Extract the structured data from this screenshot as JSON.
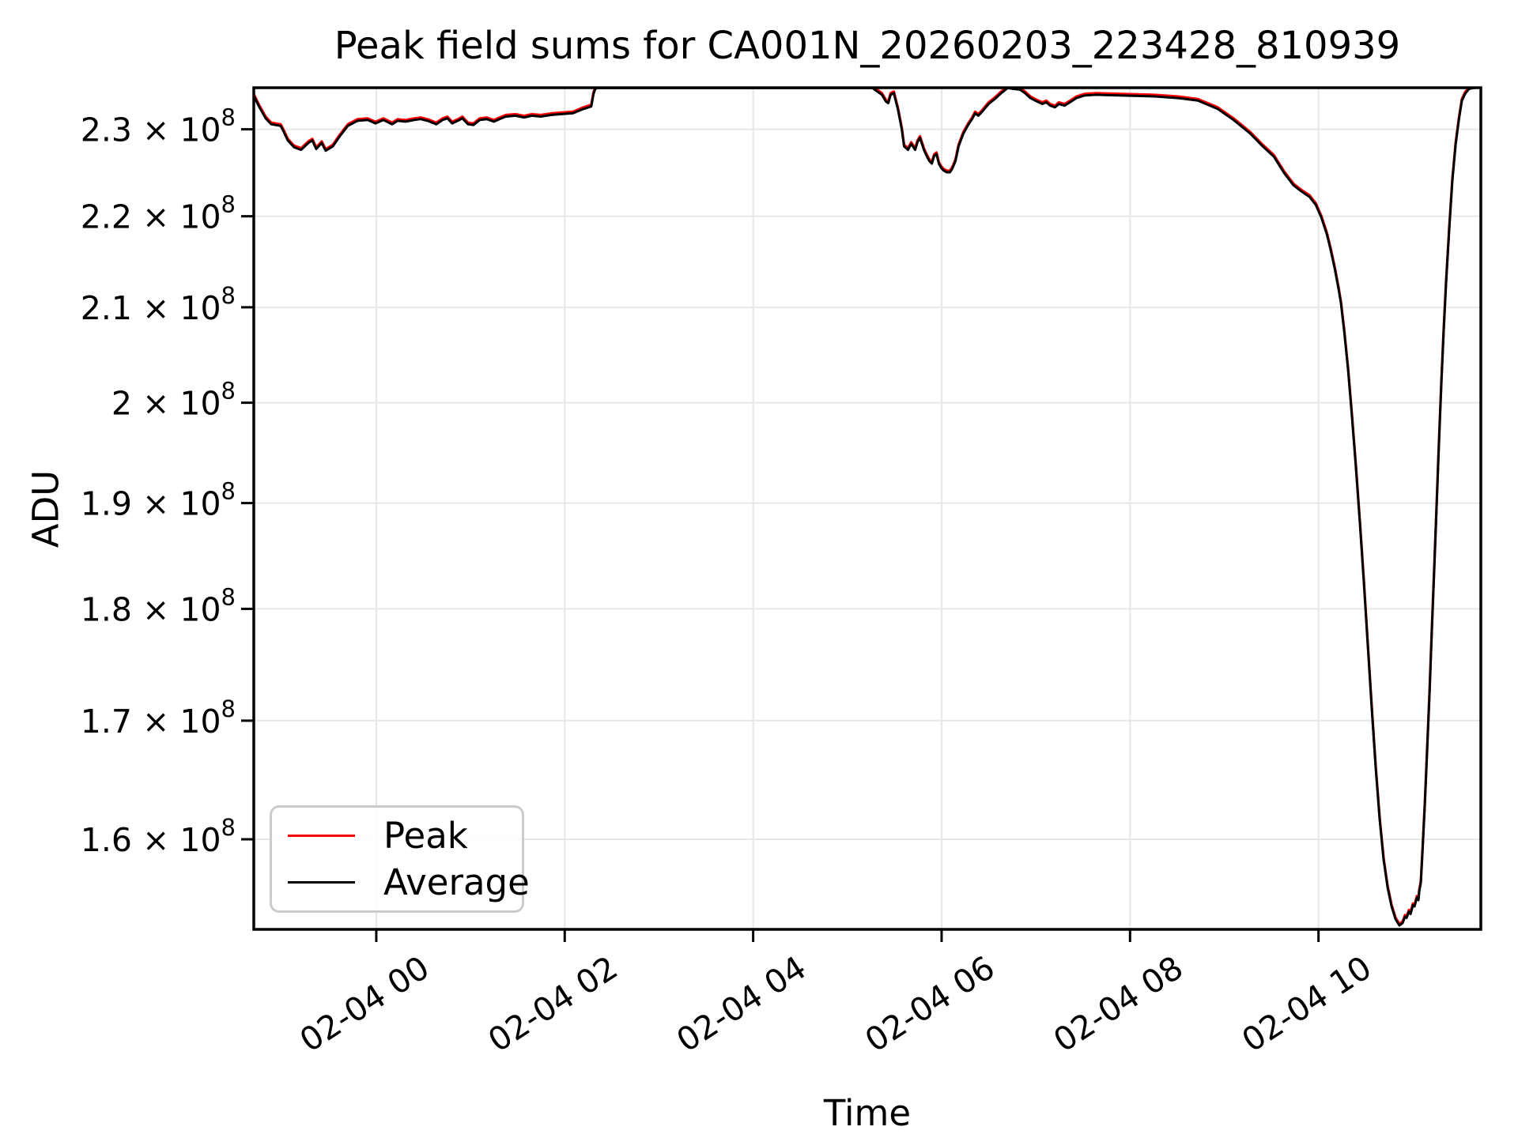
{
  "page": {
    "background": "#ffffff"
  },
  "chart_data": {
    "type": "line",
    "title": "Peak field sums for CA001N_20260203_223428_810939",
    "xlabel": "Time",
    "ylabel": "ADU",
    "grid": true,
    "grid_color": "#e7e7e7",
    "legend": {
      "location": "lower left",
      "entries": [
        {
          "label": "Peak",
          "color": "#ff0000"
        },
        {
          "label": "Average",
          "color": "#000000"
        }
      ]
    },
    "x_axis": {
      "kind": "time",
      "note": "hours relative to 2026-02-04 00:00",
      "range_hours": [
        -1.3,
        11.723
      ],
      "tick_hours": [
        0,
        2,
        4,
        6,
        8,
        10
      ],
      "tick_labels": [
        "02-04 00",
        "02-04 02",
        "02-04 04",
        "02-04 06",
        "02-04 08",
        "02-04 10"
      ],
      "tick_rotation_deg": 33
    },
    "y_axis": {
      "scale": "log",
      "unit": "ADU",
      "range_1e8": [
        1.528,
        2.3494
      ],
      "tick_values_1e8": [
        2.3,
        2.2,
        2.1,
        2.0,
        1.9,
        1.8,
        1.7,
        1.6
      ],
      "tick_mantissas": [
        "2.3",
        "2.2",
        "2.1",
        "2",
        "1.9",
        "1.8",
        "1.7",
        "1.6"
      ],
      "tick_exponent": "8"
    },
    "series": [
      {
        "name": "Peak",
        "color": "#ff0000",
        "linewidth": 3.2,
        "offset_factor": 1.0008,
        "note": "visually coincident with Average; only thin red fringes visible"
      },
      {
        "name": "Average",
        "color": "#000000",
        "linewidth": 3.0,
        "offset_factor": 1.0
      }
    ],
    "points": {
      "unit": "ADU x 1e8, values clipped at top of axes between ~02:20 and ~05:15",
      "t_hours": [
        -1.3,
        -1.25,
        -1.174,
        -1.115,
        -1.015,
        -0.99,
        -0.939,
        -0.872,
        -0.797,
        -0.721,
        -0.679,
        -0.637,
        -0.579,
        -0.537,
        -0.461,
        -0.386,
        -0.302,
        -0.201,
        -0.092,
        -0.008,
        0.075,
        0.168,
        0.226,
        0.31,
        0.403,
        0.47,
        0.545,
        0.637,
        0.704,
        0.755,
        0.805,
        0.864,
        0.914,
        0.973,
        1.031,
        1.098,
        1.174,
        1.249,
        1.308,
        1.375,
        1.476,
        1.568,
        1.652,
        1.744,
        1.862,
        1.979,
        2.088,
        2.197,
        2.281,
        2.306,
        2.323,
        2.348,
        2.5,
        3.0,
        3.5,
        4.0,
        4.5,
        4.9,
        5.1,
        5.2,
        5.266,
        5.367,
        5.409,
        5.434,
        5.459,
        5.493,
        5.535,
        5.577,
        5.602,
        5.644,
        5.677,
        5.719,
        5.744,
        5.77,
        5.812,
        5.845,
        5.87,
        5.896,
        5.921,
        5.946,
        5.971,
        5.996,
        6.021,
        6.055,
        6.088,
        6.113,
        6.147,
        6.18,
        6.231,
        6.281,
        6.323,
        6.356,
        6.39,
        6.432,
        6.499,
        6.566,
        6.633,
        6.7,
        6.767,
        6.834,
        6.885,
        6.943,
        7.011,
        7.069,
        7.111,
        7.153,
        7.204,
        7.245,
        7.304,
        7.363,
        7.43,
        7.514,
        7.64,
        7.925,
        8.26,
        8.512,
        8.721,
        8.931,
        9.099,
        9.275,
        9.409,
        9.527,
        9.636,
        9.736,
        9.82,
        9.904,
        9.971,
        10.029,
        10.088,
        10.13,
        10.172,
        10.214,
        10.239,
        10.272,
        10.314,
        10.356,
        10.398,
        10.44,
        10.482,
        10.524,
        10.566,
        10.608,
        10.65,
        10.692,
        10.734,
        10.776,
        10.818,
        10.859,
        10.893,
        10.918,
        10.935,
        10.96,
        10.977,
        11.002,
        11.019,
        11.044,
        11.061,
        11.069,
        11.086,
        11.103,
        11.128,
        11.153,
        11.178,
        11.203,
        11.229,
        11.254,
        11.279,
        11.304,
        11.329,
        11.354,
        11.388,
        11.421,
        11.455,
        11.488,
        11.522,
        11.555,
        11.597,
        11.639,
        11.723
      ],
      "adu_1e8": [
        2.34,
        2.328,
        2.313,
        2.306,
        2.304,
        2.299,
        2.287,
        2.279,
        2.276,
        2.284,
        2.287,
        2.277,
        2.284,
        2.275,
        2.28,
        2.292,
        2.304,
        2.31,
        2.311,
        2.307,
        2.311,
        2.306,
        2.31,
        2.309,
        2.311,
        2.312,
        2.31,
        2.306,
        2.311,
        2.313,
        2.307,
        2.31,
        2.313,
        2.306,
        2.305,
        2.311,
        2.312,
        2.309,
        2.312,
        2.315,
        2.316,
        2.314,
        2.316,
        2.315,
        2.317,
        2.318,
        2.319,
        2.324,
        2.327,
        2.342,
        2.348,
        2.349,
        2.349,
        2.349,
        2.349,
        2.349,
        2.349,
        2.349,
        2.349,
        2.349,
        2.349,
        2.341,
        2.333,
        2.331,
        2.341,
        2.343,
        2.324,
        2.3,
        2.28,
        2.276,
        2.283,
        2.276,
        2.285,
        2.29,
        2.276,
        2.268,
        2.263,
        2.26,
        2.269,
        2.271,
        2.26,
        2.255,
        2.252,
        2.25,
        2.25,
        2.254,
        2.263,
        2.28,
        2.295,
        2.305,
        2.312,
        2.319,
        2.316,
        2.321,
        2.33,
        2.336,
        2.343,
        2.349,
        2.348,
        2.347,
        2.343,
        2.337,
        2.333,
        2.33,
        2.332,
        2.328,
        2.326,
        2.33,
        2.328,
        2.332,
        2.337,
        2.34,
        2.341,
        2.34,
        2.339,
        2.337,
        2.334,
        2.324,
        2.311,
        2.295,
        2.28,
        2.268,
        2.249,
        2.235,
        2.228,
        2.222,
        2.213,
        2.199,
        2.18,
        2.162,
        2.142,
        2.119,
        2.104,
        2.075,
        2.034,
        1.985,
        1.934,
        1.88,
        1.824,
        1.766,
        1.71,
        1.659,
        1.616,
        1.583,
        1.561,
        1.546,
        1.536,
        1.531,
        1.533,
        1.538,
        1.537,
        1.542,
        1.54,
        1.547,
        1.546,
        1.553,
        1.551,
        1.558,
        1.565,
        1.589,
        1.628,
        1.675,
        1.724,
        1.78,
        1.838,
        1.898,
        1.961,
        2.021,
        2.075,
        2.126,
        2.187,
        2.241,
        2.282,
        2.31,
        2.334,
        2.342,
        2.348,
        2.349,
        2.35
      ]
    }
  }
}
